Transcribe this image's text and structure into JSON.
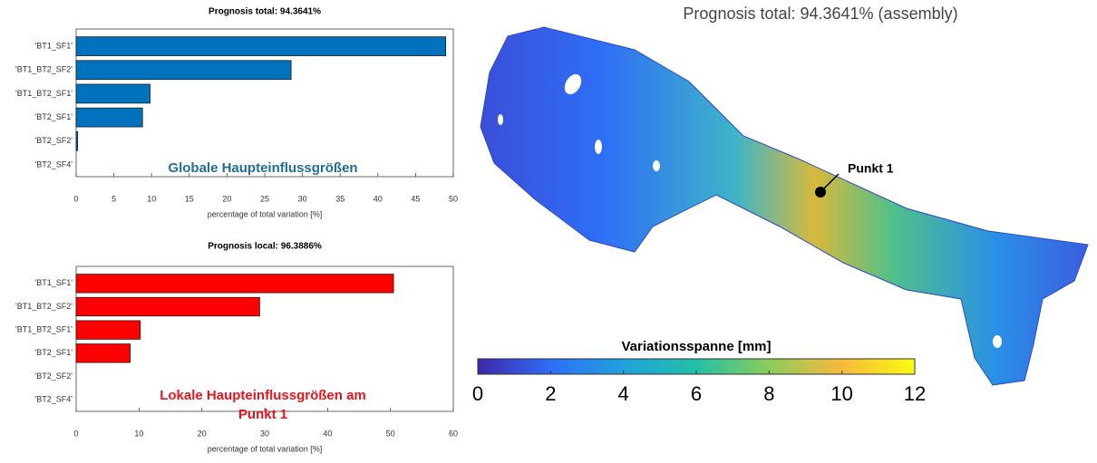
{
  "chart_data": [
    {
      "type": "bar",
      "orientation": "horizontal",
      "title": "Prognosis total: 94.3641%",
      "categories": [
        "'BT1_SF1'",
        "'BT1_BT2_SF2'",
        "'BT1_BT2_SF1'",
        "'BT2_SF1'",
        "'BT2_SF2'",
        "'BT2_SF4'"
      ],
      "values": [
        49,
        28.5,
        9.8,
        8.8,
        0.2,
        0
      ],
      "color": "#0072bd",
      "xlim": [
        0,
        50
      ],
      "xticks": [
        0,
        5,
        10,
        15,
        20,
        25,
        30,
        35,
        40,
        45,
        50
      ],
      "xlabel": "percentage of total variation [%]",
      "annotation": [
        "Globale Haupteinflussgrößen"
      ],
      "annotation_color": "#1f6f94"
    },
    {
      "type": "bar",
      "orientation": "horizontal",
      "title": "Prognosis local: 96.3886%",
      "categories": [
        "'BT1_SF1'",
        "'BT1_BT2_SF2'",
        "'BT1_BT2_SF1'",
        "'BT2_SF1'",
        "'BT2_SF2'",
        "'BT2_SF4'"
      ],
      "values": [
        50.5,
        29.2,
        10.2,
        8.6,
        0,
        0
      ],
      "color": "#ff0000",
      "xlim": [
        0,
        60
      ],
      "xticks": [
        0,
        10,
        20,
        30,
        40,
        50,
        60
      ],
      "xlabel": "percentage of total variation [%]",
      "annotation": [
        "Lokale Haupteinflussgrößen am",
        "Punkt 1"
      ],
      "annotation_color": "#e8141c"
    },
    {
      "type": "colorbar",
      "title": "Prognosis total: 94.3641% (assembly)",
      "point_label": "Punkt 1",
      "colorbar_title": "Variationsspanne [mm]",
      "clim": [
        0,
        12
      ],
      "cticks": [
        0,
        2,
        4,
        6,
        8,
        10,
        12
      ],
      "colormap": [
        "#3e26a8",
        "#2e6ef7",
        "#1fa2db",
        "#22c0a6",
        "#8bcc5a",
        "#f7ba3d",
        "#f9fb0e"
      ]
    }
  ]
}
